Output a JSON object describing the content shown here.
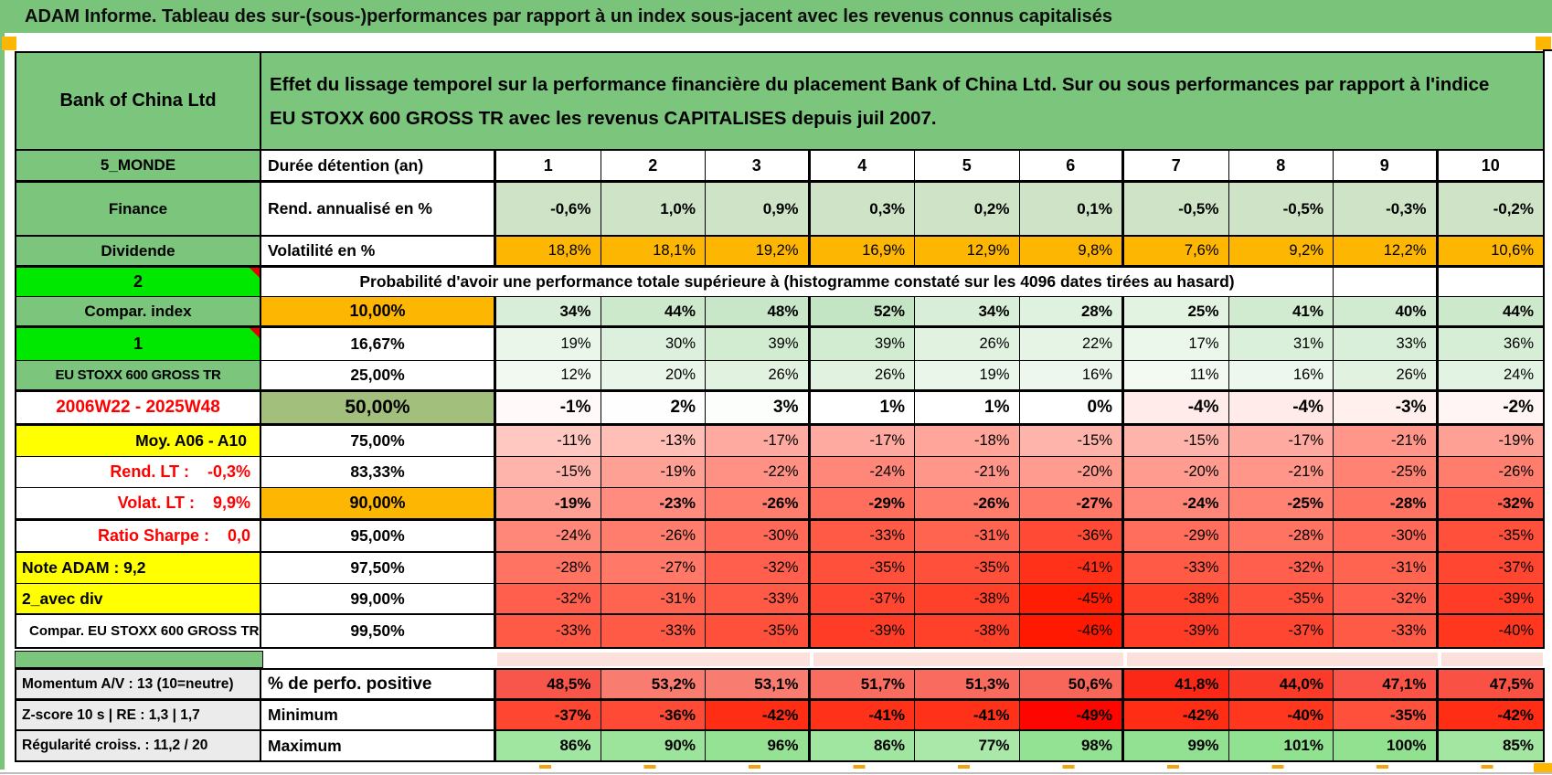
{
  "title": "ADAM Informe. Tableau des sur-(sous-)performances par rapport à un index sous-jacent avec les revenus connus capitalisés",
  "header": {
    "instrument": "Bank of China Ltd",
    "description": "Effet du lissage temporel sur la performance financière du placement Bank of China Ltd. Sur ou sous performances par rapport à l'indice EU STOXX 600 GROSS TR avec les revenus CAPITALISES depuis juil 2007."
  },
  "colors": {
    "frame_green": "#79c37a",
    "label_green": "#7cc57d",
    "bright_green": "#00e800",
    "olive_green": "#a2bf7c",
    "orange": "#fdb602",
    "yellow": "#ffff00",
    "red_text": "#fe0000",
    "rend_row_green": "#cfe4c7",
    "gray_label": "#ebebeb",
    "note_marker_red": "#e60000",
    "separator_pink": "#fbe0dc",
    "page_marker_orange": "#f2a50c"
  },
  "chart_data": {
    "type": "table",
    "title": "Probabilité d'avoir une performance totale supérieure à (histogramme constaté sur les 4096 dates tirées au hasard)",
    "x": [
      1,
      2,
      3,
      4,
      5,
      6,
      7,
      8,
      9,
      10
    ],
    "xlabel": "Durée détention (an)"
  },
  "rows": {
    "duration": {
      "label": "5_MONDE",
      "header": "Durée détention (an)",
      "values": [
        "1",
        "2",
        "3",
        "4",
        "5",
        "6",
        "7",
        "8",
        "9",
        "10"
      ]
    },
    "rend": {
      "label": "Finance",
      "header": "Rend. annualisé en %",
      "values": [
        "-0,6%",
        "1,0%",
        "0,9%",
        "0,3%",
        "0,2%",
        "0,1%",
        "-0,5%",
        "-0,5%",
        "-0,3%",
        "-0,2%"
      ]
    },
    "volat": {
      "label": "Dividende",
      "header": "Volatilité en %",
      "values": [
        "18,8%",
        "18,1%",
        "19,2%",
        "16,9%",
        "12,9%",
        "9,8%",
        "7,6%",
        "9,2%",
        "12,2%",
        "10,6%"
      ]
    },
    "banner": {
      "label": "2",
      "text": "Probabilité d'avoir une performance totale supérieure à (histogramme constaté sur les 4096 dates tirées au hasard)"
    },
    "p10": {
      "label": "Compar. index",
      "header": "10,00%",
      "values": [
        "34%",
        "44%",
        "48%",
        "52%",
        "34%",
        "28%",
        "25%",
        "41%",
        "40%",
        "44%"
      ],
      "colors": [
        "#d8eed8",
        "#cce9cc",
        "#c8e7c8",
        "#c3e5c3",
        "#d8eed8",
        "#dff1df",
        "#e2f3e2",
        "#d0ebd0",
        "#d1ebd1",
        "#cce9cc"
      ]
    },
    "p16": {
      "label": "1",
      "header": "16,67%",
      "values": [
        "19%",
        "30%",
        "39%",
        "39%",
        "26%",
        "22%",
        "17%",
        "31%",
        "33%",
        "36%"
      ],
      "colors": [
        "#e9f6e9",
        "#ddf0dd",
        "#d2ecd2",
        "#d2ecd2",
        "#e1f2e1",
        "#e6f4e6",
        "#ebf7eb",
        "#dbf0db",
        "#d9efd9",
        "#d6edd6"
      ]
    },
    "p25": {
      "label": "EU STOXX 600 GROSS TR",
      "header": "25,00%",
      "values": [
        "12%",
        "20%",
        "26%",
        "26%",
        "19%",
        "16%",
        "11%",
        "16%",
        "26%",
        "24%"
      ],
      "colors": [
        "#f1f9f1",
        "#e8f5e8",
        "#e1f2e1",
        "#e1f2e1",
        "#e9f6e9",
        "#edf7ed",
        "#f2faf2",
        "#edf7ed",
        "#e1f2e1",
        "#e3f3e3"
      ]
    },
    "p50": {
      "label": "2006W22 - 2025W48",
      "header": "50,00%",
      "values": [
        "-1%",
        "2%",
        "3%",
        "1%",
        "1%",
        "0%",
        "-4%",
        "-4%",
        "-3%",
        "-2%"
      ],
      "colors": [
        "#fffaf9",
        "#fdfefd",
        "#fcfefc",
        "#fefffe",
        "#fefffe",
        "#ffffff",
        "#ffebe9",
        "#ffebe9",
        "#fff0ee",
        "#fff5f4"
      ]
    },
    "p75": {
      "label": "Moy. A06 - A10",
      "header": "75,00%",
      "values": [
        "-11%",
        "-13%",
        "-17%",
        "-17%",
        "-18%",
        "-15%",
        "-15%",
        "-17%",
        "-21%",
        "-19%"
      ],
      "colors": [
        "#ffc8c1",
        "#ffbeb6",
        "#ffaaa0",
        "#ffaaa0",
        "#ffa59a",
        "#ffb4ab",
        "#ffb4ab",
        "#ffaaa0",
        "#ff9689",
        "#ffa095"
      ]
    },
    "p83": {
      "label": "Rend. LT :    -0,3%",
      "header": "83,33%",
      "values": [
        "-15%",
        "-19%",
        "-22%",
        "-24%",
        "-21%",
        "-20%",
        "-20%",
        "-21%",
        "-25%",
        "-26%"
      ],
      "colors": [
        "#ffb4ab",
        "#ffa095",
        "#ff9184",
        "#ff8779",
        "#ff9689",
        "#ff9b8f",
        "#ff9b8f",
        "#ff9689",
        "#ff8273",
        "#ff7d6d"
      ]
    },
    "p90": {
      "label": "Volat. LT :    9,9%",
      "header": "90,00%",
      "values": [
        "-19%",
        "-23%",
        "-26%",
        "-29%",
        "-26%",
        "-27%",
        "-24%",
        "-25%",
        "-28%",
        "-32%"
      ],
      "colors": [
        "#ffa095",
        "#ff8c7e",
        "#ff7d6d",
        "#ff6e5d",
        "#ff7d6d",
        "#ff7868",
        "#ff8779",
        "#ff8273",
        "#ff7362",
        "#ff5f4c"
      ]
    },
    "p95": {
      "label": "Ratio Sharpe :    0,0",
      "header": "95,00%",
      "values": [
        "-24%",
        "-26%",
        "-30%",
        "-33%",
        "-31%",
        "-36%",
        "-29%",
        "-28%",
        "-30%",
        "-35%"
      ],
      "colors": [
        "#ff8779",
        "#ff7d6d",
        "#ff6957",
        "#ff5a46",
        "#ff6451",
        "#ff4b35",
        "#ff6e5d",
        "#ff7362",
        "#ff6957",
        "#ff503b"
      ]
    },
    "p975": {
      "label": "Note ADAM : 9,2",
      "header": "97,50%",
      "values": [
        "-28%",
        "-27%",
        "-32%",
        "-35%",
        "-35%",
        "-41%",
        "-33%",
        "-32%",
        "-31%",
        "-37%"
      ],
      "colors": [
        "#ff7362",
        "#ff7868",
        "#ff5f4c",
        "#ff503b",
        "#ff503b",
        "#ff3219",
        "#ff5a46",
        "#ff5f4c",
        "#ff6451",
        "#ff4630"
      ]
    },
    "p99": {
      "label": "2_avec div",
      "header": "99,00%",
      "values": [
        "-32%",
        "-31%",
        "-33%",
        "-37%",
        "-38%",
        "-45%",
        "-38%",
        "-35%",
        "-32%",
        "-39%"
      ],
      "colors": [
        "#ff5f4c",
        "#ff6451",
        "#ff5a46",
        "#ff4630",
        "#ff412a",
        "#ff1e03",
        "#ff412a",
        "#ff503b",
        "#ff5f4c",
        "#ff3c25"
      ]
    },
    "p995": {
      "label": "Compar. EU STOXX 600 GROSS TR",
      "header": "99,50%",
      "values": [
        "-33%",
        "-33%",
        "-35%",
        "-39%",
        "-38%",
        "-46%",
        "-39%",
        "-37%",
        "-33%",
        "-40%"
      ],
      "colors": [
        "#ff5a46",
        "#ff5a46",
        "#ff503b",
        "#ff3c25",
        "#ff412a",
        "#ff1900",
        "#ff3c25",
        "#ff4630",
        "#ff5a46",
        "#ff371f"
      ]
    },
    "mom": {
      "label": "Momentum A/V : 13 (10=neutre)",
      "header": "% de perfo. positive",
      "values": [
        "48,5%",
        "53,2%",
        "53,1%",
        "51,7%",
        "51,3%",
        "50,6%",
        "41,8%",
        "44,0%",
        "47,1%",
        "47,5%"
      ],
      "colors": [
        "#f8564a",
        "#f97c71",
        "#f97c71",
        "#f96d61",
        "#f96b5f",
        "#f8665a",
        "#fb2817",
        "#fa3b2a",
        "#f95447",
        "#f95245"
      ]
    },
    "min": {
      "label": "Z-score 10 s | RE : 1,3 | 1,7",
      "header": "Minimum",
      "values": [
        "-37%",
        "-36%",
        "-42%",
        "-41%",
        "-41%",
        "-49%",
        "-42%",
        "-40%",
        "-35%",
        "-42%"
      ],
      "colors": [
        "#ff4630",
        "#ff4b35",
        "#ff2d14",
        "#ff3219",
        "#ff3219",
        "#ff0500",
        "#ff2d14",
        "#ff371f",
        "#ff503b",
        "#ff2d14"
      ]
    },
    "max": {
      "label": "Régularité croiss. : 11,2 / 20",
      "header": "Maximum",
      "values": [
        "86%",
        "90%",
        "96%",
        "86%",
        "77%",
        "98%",
        "99%",
        "101%",
        "100%",
        "85%"
      ],
      "colors": [
        "#a0e5a0",
        "#9ce49c",
        "#95e295",
        "#a0e5a0",
        "#aae8aa",
        "#93e293",
        "#92e192",
        "#90e190",
        "#91e191",
        "#a2e6a2"
      ]
    }
  }
}
